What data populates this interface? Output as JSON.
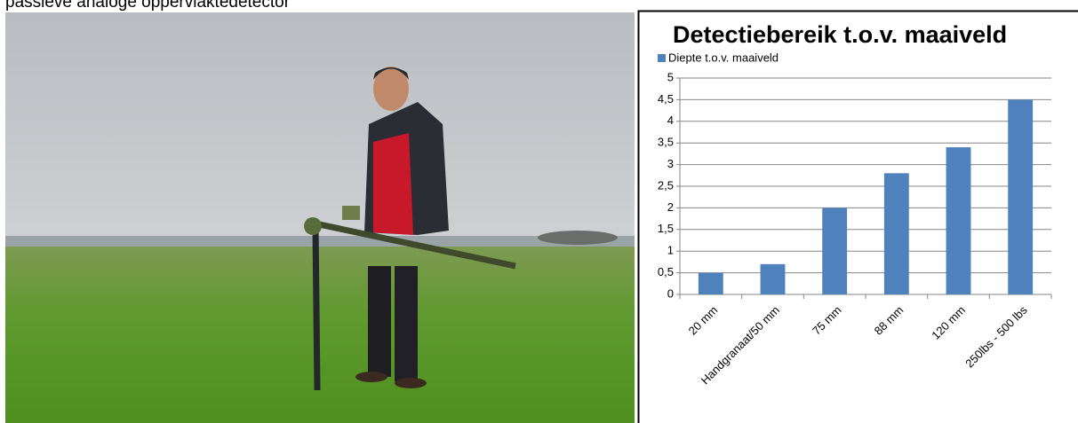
{
  "caption": "passieve analoge oppervlaktedetector",
  "chart_data": {
    "type": "bar",
    "title": "Detectiebereik t.o.v. maaiveld",
    "categories": [
      "20 mm",
      "Handgranaat/50 mm",
      "75 mm",
      "88 mm",
      "120 mm",
      "250lbs - 500 lbs"
    ],
    "series": [
      {
        "name": "Diepte t.o.v. maaiveld",
        "color": "#4f81bd",
        "values": [
          0.5,
          0.7,
          2,
          2.8,
          3.4,
          4.5
        ]
      }
    ],
    "ylim": [
      0,
      5
    ],
    "yticks": [
      0,
      {
        "value": 0.5,
        "label": "0,5"
      },
      1,
      {
        "value": 1.5,
        "label": "1,5"
      },
      2,
      {
        "value": 2.5,
        "label": "2,5"
      },
      3,
      {
        "value": 3.5,
        "label": "3,5"
      },
      4,
      {
        "value": 4.5,
        "label": "4,5"
      },
      5
    ],
    "grid": true,
    "legend": "top-left"
  }
}
